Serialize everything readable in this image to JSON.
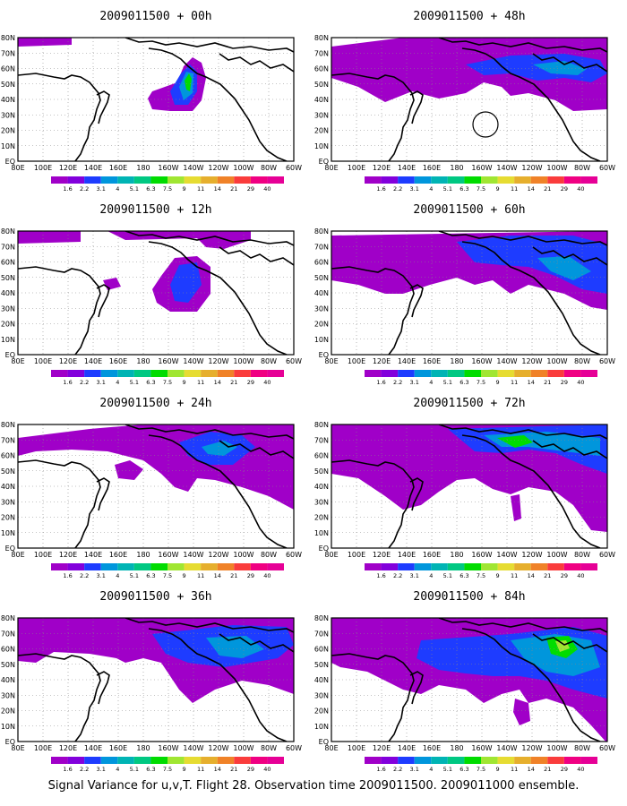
{
  "caption": "Signal Variance for u,v,T. Flight 28. Observation time 2009011500. 2009011000 ensemble.",
  "lat_labels": [
    "80N",
    "70N",
    "60N",
    "50N",
    "40N",
    "30N",
    "20N",
    "10N",
    "EQ"
  ],
  "lon_labels": [
    "80E",
    "100E",
    "120E",
    "140E",
    "160E",
    "180",
    "160W",
    "140W",
    "120W",
    "100W",
    "80W",
    "60W"
  ],
  "colorbar": {
    "levels": [
      "1.6",
      "2.2",
      "3.1",
      "4",
      "5.1",
      "6.3",
      "7.5",
      "9",
      "11",
      "14",
      "21",
      "29",
      "40"
    ],
    "colors": [
      "#a000c8",
      "#8200dc",
      "#1e3cff",
      "#0096dc",
      "#00b4b4",
      "#00c882",
      "#00dc00",
      "#a0e632",
      "#e6dc32",
      "#e6af2d",
      "#f08228",
      "#fa3c3c",
      "#f00082",
      "#e60096"
    ]
  },
  "panels": [
    {
      "title": "2009011500 + 00h"
    },
    {
      "title": "2009011500 + 48h"
    },
    {
      "title": "2009011500 + 12h"
    },
    {
      "title": "2009011500 + 60h"
    },
    {
      "title": "2009011500 + 24h"
    },
    {
      "title": "2009011500 + 72h"
    },
    {
      "title": "2009011500 + 36h"
    },
    {
      "title": "2009011500 + 84h"
    }
  ]
}
